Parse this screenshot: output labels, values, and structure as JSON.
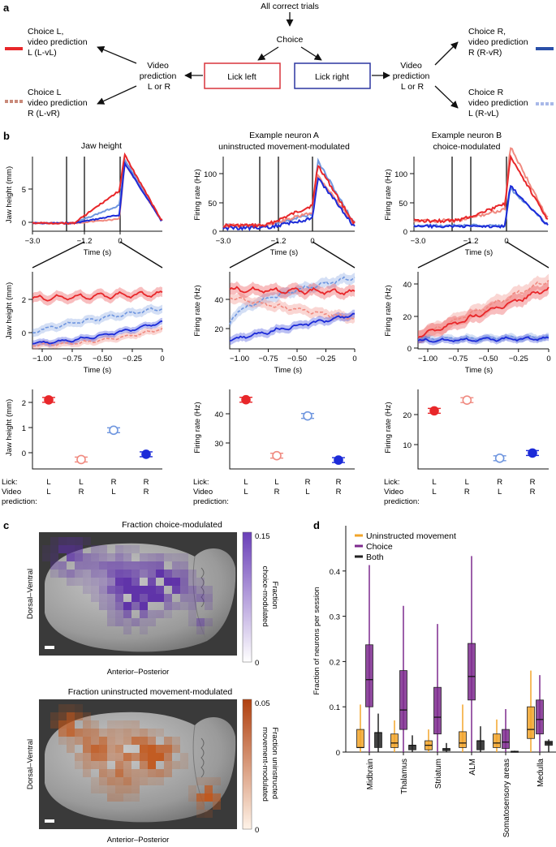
{
  "panel_labels": {
    "a": "a",
    "b": "b",
    "c": "c",
    "d": "d"
  },
  "panel_a": {
    "top": "All correct trials",
    "choice": "Choice",
    "lick_left": "Lick left",
    "lick_right": "Lick right",
    "video_pred_left": [
      "Video",
      "prediction",
      "L or R"
    ],
    "video_pred_right": [
      "Video",
      "prediction",
      "L or R"
    ],
    "out_lvl": [
      "Choice L,",
      "video prediction",
      "L (L-vL)"
    ],
    "out_lvr": [
      "Choice L",
      "video prediction",
      "R (L-vR)"
    ],
    "out_rvr": [
      "Choice R,",
      "video prediction",
      "R (R-vR)"
    ],
    "out_rvl": [
      "Choice R",
      "video prediction",
      "L (R-vL)"
    ]
  },
  "colors": {
    "lvl": "#e8272a",
    "lvr": "#f08a80",
    "rvr": "#1c2bd8",
    "rvl": "#6f96df",
    "box_left": "#d9343c",
    "box_right": "#2c36a0"
  },
  "panel_b": {
    "titles": [
      "Jaw height",
      "Example neuron A",
      "uninstructed movement-modulated",
      "Example neuron B",
      "choice-modulated"
    ],
    "ylabels": {
      "jaw": "Jaw height (mm)",
      "rate": "Firing rate (Hz)"
    },
    "xlabel": "Time (s)",
    "top_xticks": [
      "−3.0",
      "−1.2",
      "0"
    ],
    "zoom_xticks": [
      "−1.00",
      "−0.75",
      "−0.50",
      "−0.25",
      "0"
    ],
    "row_labels": [
      "Lick:",
      "Video",
      "prediction:"
    ],
    "cat_lick": [
      "L",
      "L",
      "R",
      "R"
    ],
    "cat_video": [
      "L",
      "R",
      "L",
      "R"
    ],
    "ticks": {
      "jaw_top": [
        "5",
        "0"
      ],
      "a_top": [
        "100",
        "50",
        "0"
      ],
      "b_top": [
        "100",
        "50",
        "0"
      ],
      "jaw_zoom": [
        "2",
        "0"
      ],
      "a_zoom": [
        "40",
        "20"
      ],
      "b_zoom": [
        "40",
        "20",
        "0"
      ],
      "jaw_dot": [
        "2",
        "1",
        "0"
      ],
      "a_dot": [
        "40",
        "30"
      ],
      "b_dot": [
        "20",
        "10"
      ]
    }
  },
  "chart_data": [
    {
      "type": "scatter",
      "title": "Jaw height",
      "ylabel": "Jaw height (mm)",
      "categories": [
        "L-vL",
        "L-vR",
        "R-vL",
        "R-vR"
      ],
      "values": [
        2.5,
        -0.35,
        1.05,
        -0.1
      ],
      "ylim": [
        -0.8,
        3.0
      ]
    },
    {
      "type": "scatter",
      "title": "Example neuron A",
      "ylabel": "Firing rate (Hz)",
      "categories": [
        "L-vL",
        "L-vR",
        "R-vL",
        "R-vR"
      ],
      "values": [
        44.5,
        25.5,
        39,
        24
      ],
      "ylim": [
        21,
        48
      ]
    },
    {
      "type": "scatter",
      "title": "Example neuron B",
      "ylabel": "Firing rate (Hz)",
      "categories": [
        "L-vL",
        "L-vR",
        "R-vL",
        "R-vR"
      ],
      "values": [
        21,
        24.5,
        5.5,
        7.2
      ],
      "ylim": [
        2,
        28
      ]
    },
    {
      "type": "bar",
      "title": "Fraction of neurons per session",
      "ylabel": "Fraction of neurons per session",
      "categories": [
        "Midbrain",
        "Thalamus",
        "Striatum",
        "ALM",
        "Somatosensory areas",
        "Medulla"
      ],
      "ylim": [
        0,
        0.5
      ],
      "yticks": [
        "0",
        "0.1",
        "0.2",
        "0.3",
        "0.4"
      ],
      "series": [
        {
          "name": "Uninstructed movement",
          "color": "#f2a52a",
          "q1": [
            0.01,
            0.01,
            0.005,
            0.01,
            0.01,
            0.03
          ],
          "median": [
            0.01,
            0.02,
            0.015,
            0.02,
            0.02,
            0.05
          ],
          "q3": [
            0.05,
            0.04,
            0.025,
            0.045,
            0.04,
            0.1
          ],
          "whisker": [
            0.105,
            0.07,
            0.05,
            0.105,
            0.072,
            0.18
          ]
        },
        {
          "name": "Choice",
          "color": "#7d2a8e",
          "q1": [
            0.1,
            0.05,
            0.04,
            0.115,
            0.008,
            0.04
          ],
          "median": [
            0.16,
            0.093,
            0.077,
            0.167,
            0.022,
            0.072
          ],
          "q3": [
            0.237,
            0.18,
            0.143,
            0.24,
            0.05,
            0.115
          ],
          "whisker": [
            0.413,
            0.323,
            0.283,
            0.433,
            0.095,
            0.17
          ]
        },
        {
          "name": "Both",
          "color": "#222222",
          "q1": [
            0.01,
            0.005,
            0.003,
            0.005,
            0.0,
            0.015
          ],
          "median": [
            0.043,
            0.015,
            0.007,
            0.025,
            0.001,
            0.02
          ],
          "q3": [
            0.043,
            0.015,
            0.008,
            0.025,
            0.002,
            0.024
          ],
          "whisker": [
            0.085,
            0.037,
            0.02,
            0.057,
            0.003,
            0.028
          ]
        }
      ]
    }
  ],
  "panel_c": {
    "title1": "Fraction choice-modulated",
    "title2": "Fraction uninstructed movement-modulated",
    "ylabel": "Dorsal–Ventral",
    "xlabel": "Anterior–Posterior",
    "cbar1_label": [
      "Fraction",
      "choice-modulated"
    ],
    "cbar2_label": [
      "Fraction uninstructed",
      "movement-modulated"
    ],
    "cbar1_ticks": [
      "0.15",
      "0"
    ],
    "cbar2_ticks": [
      "0.05",
      "0"
    ]
  },
  "panel_d": {
    "legend": [
      "Uninstructed movement",
      "Choice",
      "Both"
    ],
    "ylabel": "Fraction of neurons per session"
  }
}
